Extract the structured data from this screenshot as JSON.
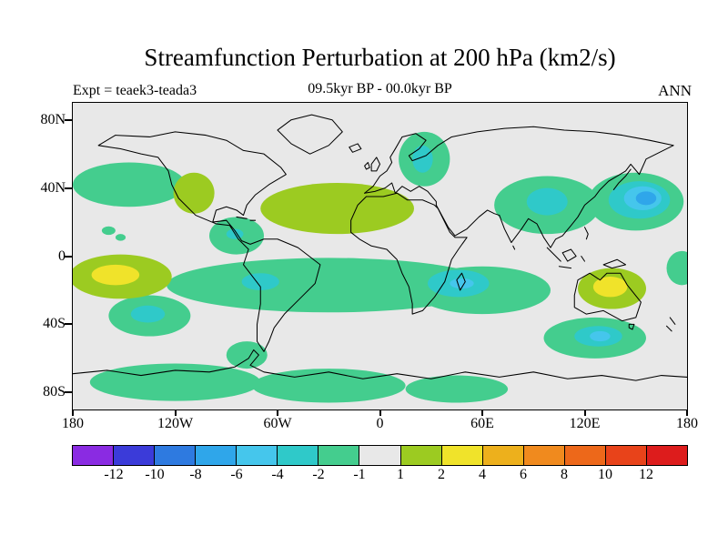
{
  "title": "Streamfunction Perturbation at 200 hPa (km2/s)",
  "header": {
    "experiment": "Expt = teaek3-teada3",
    "period": "09.5kyr BP - 00.0kyr BP",
    "season": "ANN"
  },
  "map": {
    "background": "#e8e8e8",
    "lat_ticks": [
      {
        "label": "80N",
        "lat": 80
      },
      {
        "label": "40N",
        "lat": 40
      },
      {
        "label": "0",
        "lat": 0
      },
      {
        "label": "40S",
        "lat": -40
      },
      {
        "label": "80S",
        "lat": -80
      }
    ],
    "lon_ticks": [
      {
        "label": "180",
        "lon": -180
      },
      {
        "label": "120W",
        "lon": -120
      },
      {
        "label": "60W",
        "lon": -60
      },
      {
        "label": "0",
        "lon": 0
      },
      {
        "label": "60E",
        "lon": 60
      },
      {
        "label": "120E",
        "lon": 120
      },
      {
        "label": "180",
        "lon": 180
      }
    ]
  },
  "colorbar": {
    "levels": [
      -12,
      -10,
      -8,
      -6,
      -4,
      -2,
      -1,
      1,
      2,
      4,
      6,
      8,
      10,
      12
    ],
    "labels": [
      "-12",
      "-10",
      "-8",
      "-6",
      "-4",
      "-2",
      "-1",
      "1",
      "2",
      "4",
      "6",
      "8",
      "10",
      "12"
    ],
    "colors": [
      "#8a2be2",
      "#3b3bd9",
      "#2e7ae0",
      "#2fa6ea",
      "#45c6ec",
      "#2fc9c9",
      "#44cd8e",
      "#e8e8e8",
      "#9ccb21",
      "#f0e32a",
      "#edb01c",
      "#f08a1e",
      "#ed681a",
      "#e8431a",
      "#dd1c1c"
    ]
  },
  "chart_data": {
    "type": "heatmap",
    "title": "Streamfunction Perturbation at 200 hPa (km2/s)",
    "variable": "streamfunction perturbation",
    "pressure_level_hPa": 200,
    "units": "km2/s",
    "experiment_difference": "teaek3-teada3",
    "time_difference": "09.5kyr BP - 00.0kyr BP",
    "season": "ANN",
    "projection": "equirectangular",
    "lon_range": [
      -180,
      180
    ],
    "lat_range": [
      -90,
      90
    ],
    "contour_levels": [
      -12,
      -10,
      -8,
      -6,
      -4,
      -2,
      -1,
      1,
      2,
      4,
      6,
      8,
      10,
      12
    ],
    "background_value_range": [
      -1,
      1
    ],
    "anomaly_features": [
      {
        "name": "north-pacific-west",
        "lon": -147,
        "lat": 42,
        "rx": 33,
        "ry": 13,
        "value": -1.5
      },
      {
        "name": "north-pacific-spot-1",
        "lon": -159,
        "lat": 15,
        "rx": 4,
        "ry": 2.5,
        "value": -1.5
      },
      {
        "name": "north-pacific-spot-2",
        "lon": -152,
        "lat": 11,
        "rx": 3,
        "ry": 2,
        "value": -1.5
      },
      {
        "name": "caribbean",
        "lon": -84,
        "lat": 12,
        "rx": 16,
        "ry": 11,
        "value": -1.5
      },
      {
        "name": "scandinavia",
        "lon": 26,
        "lat": 57,
        "rx": 15,
        "ry": 16,
        "value": -1.5
      },
      {
        "name": "central-asia",
        "lon": 98,
        "lat": 30,
        "rx": 31,
        "ry": 17,
        "value": -1.5
      },
      {
        "name": "northwest-pacific",
        "lon": 150,
        "lat": 32,
        "rx": 28,
        "ry": 17,
        "value": -1.5
      },
      {
        "name": "south-tropical-band-atlantic",
        "lon": -30,
        "lat": -17,
        "rx": 95,
        "ry": 16,
        "value": -1.5
      },
      {
        "name": "south-tropical-band-indian",
        "lon": 60,
        "lat": -20,
        "rx": 40,
        "ry": 14,
        "value": -1.5
      },
      {
        "name": "south-pacific",
        "lon": -135,
        "lat": -35,
        "rx": 24,
        "ry": 12,
        "value": -1.5
      },
      {
        "name": "southeast-of-australia",
        "lon": 126,
        "lat": -48,
        "rx": 30,
        "ry": 12,
        "value": -1.5
      },
      {
        "name": "antarctic-west",
        "lon": -120,
        "lat": -74,
        "rx": 50,
        "ry": 11,
        "value": -1.5
      },
      {
        "name": "antarctic-central",
        "lon": -30,
        "lat": -76,
        "rx": 45,
        "ry": 10,
        "value": -1.5
      },
      {
        "name": "antarctic-east",
        "lon": 45,
        "lat": -78,
        "rx": 30,
        "ry": 8,
        "value": -1.5
      },
      {
        "name": "antarctic-peninsula",
        "lon": -78,
        "lat": -58,
        "rx": 12,
        "ry": 8,
        "value": -1.5
      },
      {
        "name": "west-pacific-equator",
        "lon": 177,
        "lat": -7,
        "rx": 9,
        "ry": 10,
        "value": -1.5
      },
      {
        "name": "western-north-america",
        "lon": -109,
        "lat": 37,
        "rx": 12,
        "ry": 12,
        "value": 1.5
      },
      {
        "name": "north-atlantic-europe",
        "lon": -25,
        "lat": 28,
        "rx": 45,
        "ry": 15,
        "value": 1.5
      },
      {
        "name": "central-tropical-pacific",
        "lon": -152,
        "lat": -12,
        "rx": 30,
        "ry": 13,
        "value": 1.5
      },
      {
        "name": "australia",
        "lon": 136,
        "lat": -19,
        "rx": 20,
        "ry": 12,
        "value": 1.5
      },
      {
        "name": "caribbean-core",
        "lon": -85,
        "lat": 13,
        "rx": 5,
        "ry": 3,
        "value": -3
      },
      {
        "name": "scandinavia-core",
        "lon": 25,
        "lat": 57,
        "rx": 6,
        "ry": 8,
        "value": -3
      },
      {
        "name": "central-asia-core",
        "lon": 98,
        "lat": 32,
        "rx": 12,
        "ry": 8,
        "value": -3
      },
      {
        "name": "northwest-pacific-core",
        "lon": 152,
        "lat": 33,
        "rx": 18,
        "ry": 11,
        "value": -3
      },
      {
        "name": "tropical-atlantic-core",
        "lon": -70,
        "lat": -15,
        "rx": 11,
        "ry": 5,
        "value": -3
      },
      {
        "name": "tropical-indian-core",
        "lon": 46,
        "lat": -16,
        "rx": 18,
        "ry": 8,
        "value": -3
      },
      {
        "name": "south-pacific-core",
        "lon": -136,
        "lat": -34,
        "rx": 10,
        "ry": 5,
        "value": -3
      },
      {
        "name": "southeast-of-australia-core",
        "lon": 128,
        "lat": -47,
        "rx": 14,
        "ry": 6,
        "value": -3
      },
      {
        "name": "central-tropical-pacific-core",
        "lon": -155,
        "lat": -11,
        "rx": 14,
        "ry": 6,
        "value": 3
      },
      {
        "name": "australia-core",
        "lon": 135,
        "lat": -18,
        "rx": 10,
        "ry": 6,
        "value": 3
      },
      {
        "name": "northwest-pacific-inner",
        "lon": 154,
        "lat": 34,
        "rx": 11,
        "ry": 7,
        "value": -5
      },
      {
        "name": "tropical-indian-inner",
        "lon": 48,
        "lat": -16,
        "rx": 7,
        "ry": 3,
        "value": -5
      },
      {
        "name": "southeast-of-australia-inner",
        "lon": 129,
        "lat": -47,
        "rx": 6,
        "ry": 3,
        "value": -5
      },
      {
        "name": "northwest-pacific-innermost",
        "lon": 156,
        "lat": 34,
        "rx": 6,
        "ry": 4,
        "value": -7
      }
    ]
  }
}
